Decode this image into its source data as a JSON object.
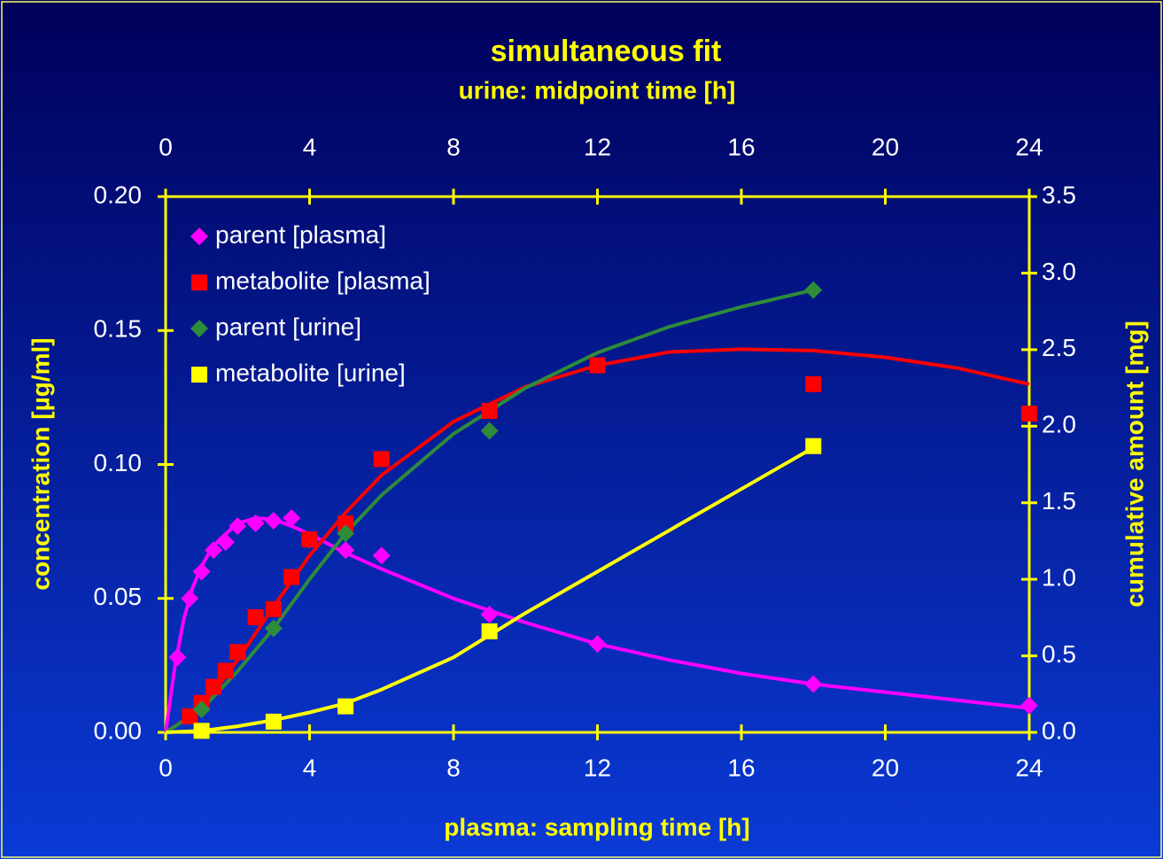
{
  "chart_data": {
    "type": "scatter",
    "title": "simultaneous fit",
    "x2_label": "urine: midpoint time [h]",
    "x_label": "plasma: sampling time [h]",
    "y_label": "concentration [µg/ml]",
    "y2_label": "cumulative amount [mg]",
    "xlim": [
      0,
      24
    ],
    "xticks": [
      0,
      4,
      8,
      12,
      16,
      20,
      24
    ],
    "x2lim": [
      0,
      24
    ],
    "x2ticks": [
      0,
      4,
      8,
      12,
      16,
      20,
      24
    ],
    "ylim": [
      0,
      0.2
    ],
    "yticks": [
      {
        "value": 0,
        "label": "0.00"
      },
      0.05,
      {
        "value": 0.1,
        "label": "0.10"
      },
      0.15,
      {
        "value": 0.2,
        "label": "0.20"
      }
    ],
    "y2lim": [
      0,
      3.5
    ],
    "y2ticks": [
      {
        "value": 0,
        "label": "0.0"
      },
      0.5,
      {
        "value": 1,
        "label": "1.0"
      },
      1.5,
      {
        "value": 2,
        "label": "2.0"
      },
      2.5,
      {
        "value": 3,
        "label": "3.0"
      },
      3.5
    ],
    "legend": "upper left",
    "series": [
      {
        "name": "parent [plasma]",
        "color": "#ff00ff",
        "marker": "diamond",
        "x": [
          0.33,
          0.67,
          1,
          1.33,
          1.67,
          2,
          2.5,
          3,
          3.5,
          4,
          5,
          6,
          9,
          12,
          18,
          24
        ],
        "values": [
          0.028,
          0.05,
          0.06,
          0.068,
          0.071,
          0.077,
          0.078,
          0.079,
          0.08,
          0.072,
          0.068,
          0.066,
          0.044,
          0.033,
          0.018,
          0.01
        ]
      },
      {
        "name": "metabolite [plasma]",
        "color": "#ff0000",
        "marker": "square",
        "x": [
          0.67,
          1,
          1.33,
          1.67,
          2,
          2.5,
          3,
          3.5,
          4,
          5,
          6,
          9,
          12,
          18,
          24
        ],
        "values": [
          0.006,
          0.011,
          0.017,
          0.023,
          0.03,
          0.043,
          0.046,
          0.058,
          0.072,
          0.078,
          0.102,
          0.12,
          0.137,
          0.13,
          0.119
        ]
      },
      {
        "name": "parent [urine]",
        "color": "#2e8b3a",
        "marker": "diamond",
        "axis": "y2",
        "x": [
          1,
          3,
          5,
          9,
          18
        ],
        "values": [
          0.15,
          0.68,
          1.3,
          1.97,
          2.89
        ]
      },
      {
        "name": "metabolite [urine]",
        "color": "#ffff00",
        "marker": "square",
        "axis": "y2",
        "x": [
          1,
          3,
          5,
          9,
          18
        ],
        "values": [
          0.01,
          0.07,
          0.17,
          0.66,
          1.87
        ]
      }
    ],
    "fits": [
      {
        "color": "#ff00ff",
        "x": [
          0,
          0.25,
          0.5,
          0.75,
          1,
          1.25,
          1.5,
          2,
          2.5,
          3,
          3.5,
          4,
          5,
          6,
          8,
          10,
          12,
          14,
          16,
          18,
          20,
          22,
          24
        ],
        "values": [
          0,
          0.024,
          0.042,
          0.054,
          0.062,
          0.068,
          0.072,
          0.078,
          0.08,
          0.0795,
          0.077,
          0.074,
          0.067,
          0.061,
          0.05,
          0.041,
          0.033,
          0.027,
          0.022,
          0.018,
          0.015,
          0.012,
          0.009
        ]
      },
      {
        "color": "#ff0000",
        "x": [
          0,
          1,
          2,
          3,
          4,
          5,
          6,
          8,
          10,
          12,
          14,
          16,
          18,
          20,
          22,
          24
        ],
        "values": [
          0,
          0.009,
          0.027,
          0.047,
          0.066,
          0.082,
          0.096,
          0.116,
          0.129,
          0.137,
          0.142,
          0.143,
          0.1425,
          0.14,
          0.136,
          0.13
        ]
      },
      {
        "color": "#2e8b3a",
        "axis": "y2",
        "x": [
          0,
          1,
          2,
          3,
          4,
          5,
          6,
          8,
          10,
          12,
          14,
          16,
          18
        ],
        "values": [
          0,
          0.15,
          0.4,
          0.68,
          1,
          1.3,
          1.55,
          1.95,
          2.25,
          2.48,
          2.65,
          2.78,
          2.89
        ]
      },
      {
        "color": "#ffff00",
        "axis": "y2",
        "x": [
          0,
          1,
          2,
          3,
          4,
          5,
          6,
          8,
          10,
          12,
          14,
          16,
          18
        ],
        "values": [
          0,
          0.01,
          0.04,
          0.08,
          0.13,
          0.19,
          0.28,
          0.49,
          0.78,
          1.05,
          1.32,
          1.59,
          1.86
        ]
      }
    ]
  }
}
